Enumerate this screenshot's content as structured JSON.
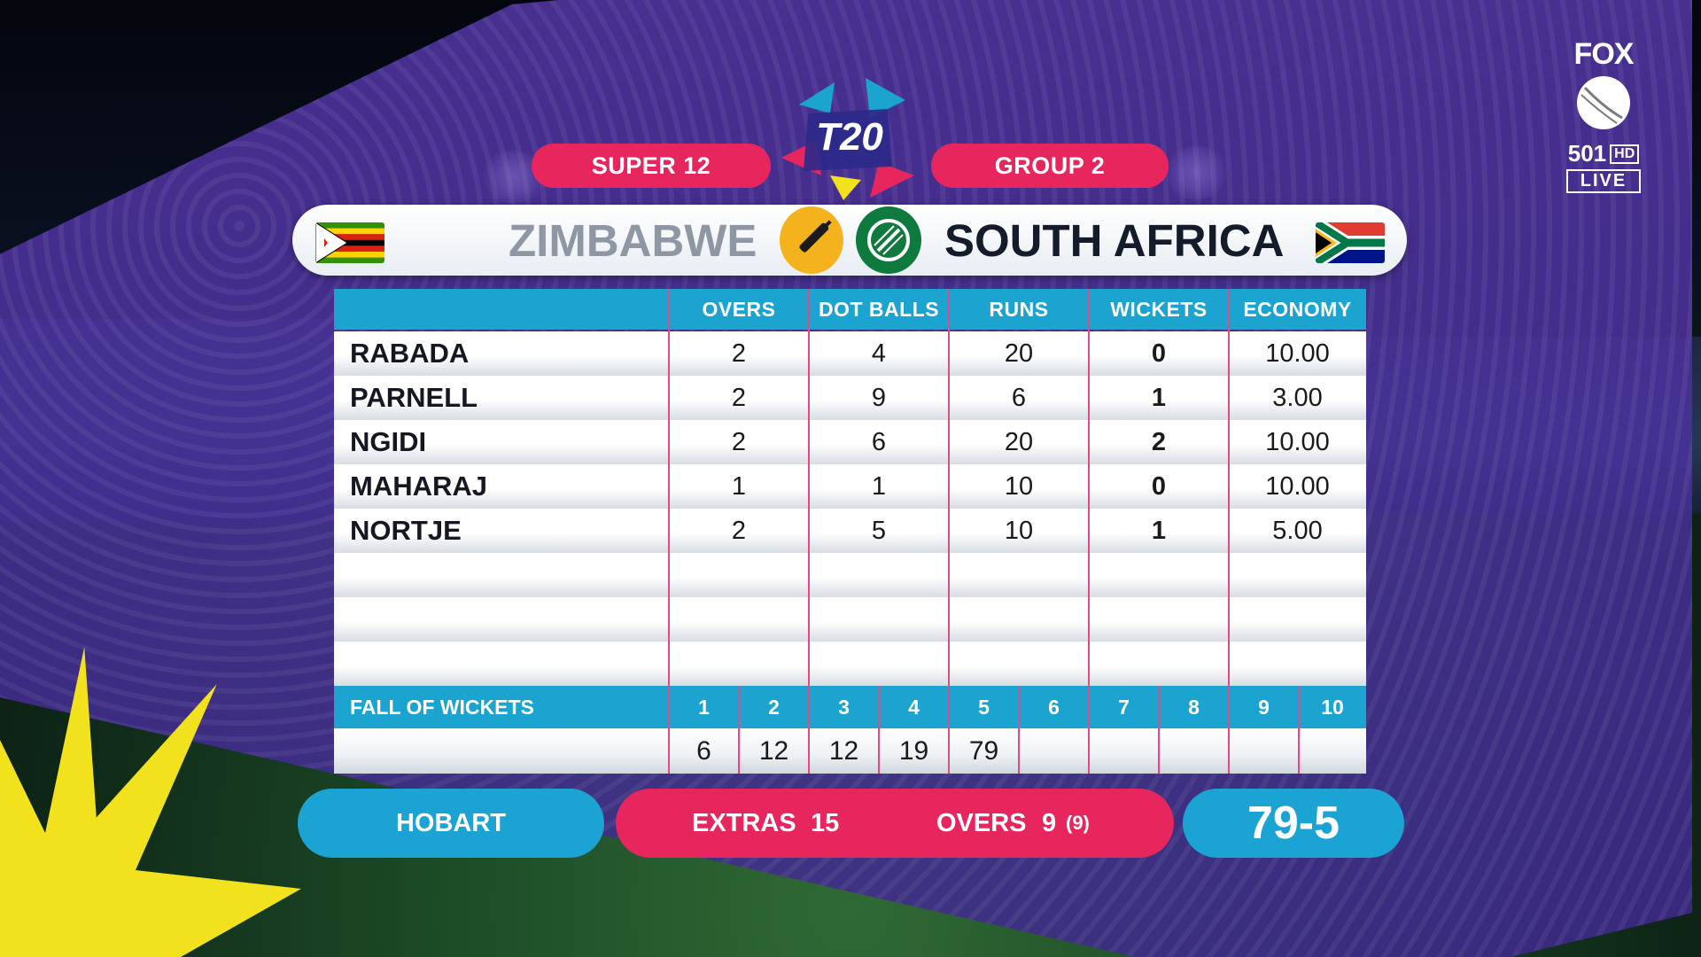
{
  "broadcast": {
    "logo_top": "FOX",
    "channel": "501",
    "hd": "HD",
    "live": "LIVE"
  },
  "event": {
    "logo_text": "T20",
    "stage": "SUPER 12",
    "group": "GROUP 2"
  },
  "teams": {
    "batting": "ZIMBABWE",
    "bowling": "SOUTH AFRICA"
  },
  "table": {
    "columns": [
      "OVERS",
      "DOT BALLS",
      "RUNS",
      "WICKETS",
      "ECONOMY"
    ],
    "rows": [
      {
        "name": "RABADA",
        "overs": "2",
        "dots": "4",
        "runs": "20",
        "wickets": "0",
        "economy": "10.00"
      },
      {
        "name": "PARNELL",
        "overs": "2",
        "dots": "9",
        "runs": "6",
        "wickets": "1",
        "economy": "3.00"
      },
      {
        "name": "NGIDI",
        "overs": "2",
        "dots": "6",
        "runs": "20",
        "wickets": "2",
        "economy": "10.00"
      },
      {
        "name": "MAHARAJ",
        "overs": "1",
        "dots": "1",
        "runs": "10",
        "wickets": "0",
        "economy": "10.00"
      },
      {
        "name": "NORTJE",
        "overs": "2",
        "dots": "5",
        "runs": "10",
        "wickets": "1",
        "economy": "5.00"
      }
    ],
    "fall_of_wickets": {
      "label": "FALL OF WICKETS",
      "numbers": [
        "1",
        "2",
        "3",
        "4",
        "5",
        "6",
        "7",
        "8",
        "9",
        "10"
      ],
      "scores": [
        "6",
        "12",
        "12",
        "19",
        "79",
        "",
        "",
        "",
        "",
        ""
      ]
    }
  },
  "footer": {
    "venue": "HOBART",
    "extras_label": "EXTRAS",
    "extras_value": "15",
    "overs_label": "OVERS",
    "overs_value": "9",
    "overs_sub": "(9)",
    "score": "79-5"
  },
  "colors": {
    "pink": "#e8265e",
    "cyan": "#1aa4cf",
    "purple": "#5a3aae",
    "yellow": "#f1e21d"
  }
}
